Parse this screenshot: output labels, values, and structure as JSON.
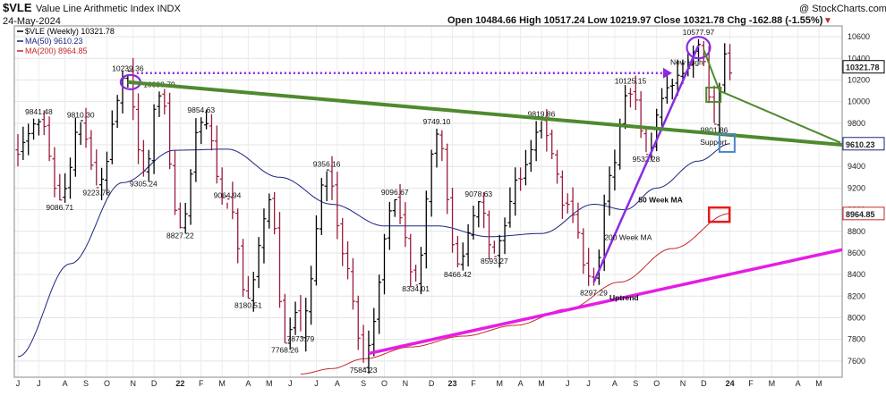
{
  "header": {
    "symbol": "$VLE",
    "name": "Value Line Arithmetic Index INDX",
    "date": "24-May-2024",
    "source": "@ StockCharts.com",
    "quote": "Open 10484.66  High 10517.24  Low 10219.97  Close 10321.78  Chg -162.88 (-1.55%)",
    "quote_arrow": "▼"
  },
  "legend": {
    "price": "$VLE (Weekly) 10321.78",
    "ma50": "MA(50) 9610.23",
    "ma200": "MA(200) 8964.85"
  },
  "colors": {
    "bar_up": "#000000",
    "bar_down": "#9b1b3c",
    "ma50": "#1a237e",
    "ma200": "#c62828",
    "green_line": "#4e8a2e",
    "magenta": "#e61ce6",
    "purple": "#8a2be2",
    "blue_box": "#4a86c8",
    "red_box": "#e31b1b"
  },
  "chart_data": {
    "type": "ohlc",
    "ylim": [
      7450,
      10700
    ],
    "y_ticks": [
      7600,
      7800,
      8000,
      8200,
      8400,
      8600,
      8800,
      9000,
      9200,
      9400,
      9600,
      9800,
      10000,
      10200,
      10400,
      10600
    ],
    "x_labels": [
      "J",
      "J",
      "A",
      "S",
      "O",
      "N",
      "D",
      "22",
      "F",
      "M",
      "A",
      "M",
      "J",
      "J",
      "A",
      "S",
      "O",
      "N",
      "D",
      "23",
      "F",
      "M",
      "A",
      "M",
      "J",
      "J",
      "A",
      "S",
      "O",
      "N",
      "D",
      "24",
      "F",
      "M",
      "A",
      "M"
    ],
    "x_label_weeks": [
      0,
      4,
      9,
      13,
      17,
      22,
      26,
      31,
      35,
      39,
      44,
      48,
      52,
      57,
      61,
      66,
      70,
      74,
      79,
      83,
      87,
      92,
      96,
      100,
      105,
      109,
      114,
      118,
      122,
      127,
      131,
      136,
      140,
      144,
      149,
      153
    ],
    "weeks": 157,
    "anchors": [
      [
        0,
        9550
      ],
      [
        4,
        9841.48
      ],
      [
        8,
        9086.71
      ],
      [
        12,
        9810.3
      ],
      [
        15,
        9223.78
      ],
      [
        21,
        10239.36
      ],
      [
        24,
        9305.24
      ],
      [
        27,
        10093.79
      ],
      [
        31,
        8827.22
      ],
      [
        35,
        9854.63
      ],
      [
        40,
        9064.94
      ],
      [
        44,
        8180.51
      ],
      [
        48,
        9100
      ],
      [
        51,
        7768.26
      ],
      [
        53,
        8050
      ],
      [
        54,
        7873.79
      ],
      [
        59,
        9356.16
      ],
      [
        63,
        8400
      ],
      [
        66,
        7584.23
      ],
      [
        72,
        9096.67
      ],
      [
        76,
        8334.01
      ],
      [
        80,
        9749.1
      ],
      [
        84,
        8466.42
      ],
      [
        88,
        9078.63
      ],
      [
        91,
        8593.27
      ],
      [
        96,
        9300
      ],
      [
        100,
        9819.86
      ],
      [
        105,
        9000
      ],
      [
        110,
        8297.29
      ],
      [
        113,
        9300
      ],
      [
        117,
        10125.15
      ],
      [
        120,
        9532.28
      ],
      [
        124,
        10100
      ],
      [
        127,
        10250
      ],
      [
        130,
        10577.97
      ],
      [
        133,
        9801.86
      ],
      [
        135,
        10500
      ],
      [
        136,
        10321.78
      ]
    ],
    "ma50_anchors": [
      [
        0,
        7640
      ],
      [
        10,
        8500
      ],
      [
        20,
        9250
      ],
      [
        30,
        9550
      ],
      [
        40,
        9560
      ],
      [
        50,
        9300
      ],
      [
        60,
        9050
      ],
      [
        70,
        8850
      ],
      [
        80,
        8850
      ],
      [
        90,
        8750
      ],
      [
        100,
        8780
      ],
      [
        110,
        9050
      ],
      [
        116,
        9000
      ],
      [
        122,
        9200
      ],
      [
        130,
        9450
      ],
      [
        136,
        9610.23
      ]
    ],
    "ma200_anchors": [
      [
        54,
        7480
      ],
      [
        60,
        7530
      ],
      [
        66,
        7620
      ],
      [
        75,
        7730
      ],
      [
        85,
        7830
      ],
      [
        95,
        7930
      ],
      [
        105,
        8080
      ],
      [
        115,
        8330
      ],
      [
        125,
        8640
      ],
      [
        136,
        8964.85
      ]
    ],
    "price_labels": [
      {
        "text": "9841.48",
        "week": 4,
        "value": 9841.48,
        "pos": "above"
      },
      {
        "text": "9086.71",
        "week": 8,
        "value": 9086.71,
        "pos": "below"
      },
      {
        "text": "9810.30",
        "week": 12,
        "value": 9810.3,
        "pos": "above"
      },
      {
        "text": "9223.78",
        "week": 15,
        "value": 9223.78,
        "pos": "below"
      },
      {
        "text": "10239.36",
        "week": 21,
        "value": 10239.36,
        "pos": "above"
      },
      {
        "text": "9305.24",
        "week": 24,
        "value": 9305.24,
        "pos": "below"
      },
      {
        "text": "10093.79",
        "week": 27,
        "value": 10093.79,
        "pos": "above"
      },
      {
        "text": "8827.22",
        "week": 31,
        "value": 8827.22,
        "pos": "below"
      },
      {
        "text": "9854.63",
        "week": 35,
        "value": 9854.63,
        "pos": "above"
      },
      {
        "text": "9064.94",
        "week": 40,
        "value": 9064.94,
        "pos": "above"
      },
      {
        "text": "8180.51",
        "week": 44,
        "value": 8180.51,
        "pos": "below"
      },
      {
        "text": "7768.26",
        "week": 51,
        "value": 7768.26,
        "pos": "below"
      },
      {
        "text": "7873.79",
        "week": 54,
        "value": 7873.79,
        "pos": "below"
      },
      {
        "text": "9356.16",
        "week": 59,
        "value": 9356.16,
        "pos": "above"
      },
      {
        "text": "7584.23",
        "week": 66,
        "value": 7584.23,
        "pos": "below"
      },
      {
        "text": "9096.67",
        "week": 72,
        "value": 9096.67,
        "pos": "above"
      },
      {
        "text": "8334.01",
        "week": 76,
        "value": 8334.01,
        "pos": "below"
      },
      {
        "text": "9749.10",
        "week": 80,
        "value": 9749.1,
        "pos": "above"
      },
      {
        "text": "8466.42",
        "week": 84,
        "value": 8466.42,
        "pos": "below"
      },
      {
        "text": "9078.63",
        "week": 88,
        "value": 9078.63,
        "pos": "above"
      },
      {
        "text": "8593.27",
        "week": 91,
        "value": 8593.27,
        "pos": "below"
      },
      {
        "text": "9819.86",
        "week": 100,
        "value": 9819.86,
        "pos": "above"
      },
      {
        "text": "8297.29",
        "week": 110,
        "value": 8297.29,
        "pos": "below"
      },
      {
        "text": "10125.15",
        "week": 117,
        "value": 10125.15,
        "pos": "above"
      },
      {
        "text": "9532.28",
        "week": 120,
        "value": 9532.28,
        "pos": "below"
      },
      {
        "text": "10577.97",
        "week": 130,
        "value": 10577.97,
        "pos": "above"
      },
      {
        "text": "9801.86",
        "week": 133,
        "value": 9801.86,
        "pos": "below"
      }
    ],
    "last_price": "10321.78",
    "ma50_value": "9610.23",
    "ma200_value": "8964.85",
    "annotations": {
      "new_high": "New High",
      "support": "Support",
      "ma50": "50 Week MA",
      "ma200": "200 Week MA",
      "uptrend": "Uptrend"
    }
  }
}
